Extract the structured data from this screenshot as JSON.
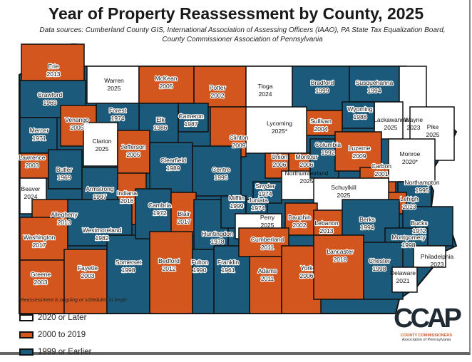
{
  "title": "Year of Property Reassessment by County, 2025",
  "sources": "Data sources: Cumberland County GIS, International Association of Assessing Officers (IAAO), PA State Tax Equalization Board, County Commissioner Association of Pennsylvania",
  "footnote": "*Reassessment is ongoing or scheduled to begin",
  "colors": {
    "white": "#ffffff",
    "orange": "#d2561e",
    "blue": "#1b5a7a",
    "border": "#111111"
  },
  "legend": [
    {
      "label": "2020 or Later",
      "category": "white"
    },
    {
      "label": "2000 to 2019",
      "category": "orange"
    },
    {
      "label": "1999 or Earlier",
      "category": "blue"
    }
  ],
  "logo": {
    "mark": "CCAP",
    "line1": "COUNTY COMMISSIONERS",
    "line2": "Association of Pennsylvania"
  },
  "counties": [
    {
      "name": "Erie",
      "year": "2013",
      "category": "orange"
    },
    {
      "name": "Warren",
      "year": "2025",
      "category": "white"
    },
    {
      "name": "McKean",
      "year": "2005",
      "category": "orange"
    },
    {
      "name": "Potter",
      "year": "2002",
      "category": "orange"
    },
    {
      "name": "Tioga",
      "year": "2024",
      "category": "white"
    },
    {
      "name": "Bradford",
      "year": "1999",
      "category": "blue"
    },
    {
      "name": "Susquehanna",
      "year": "1994",
      "category": "blue"
    },
    {
      "name": "Wayne",
      "year": "2023",
      "category": "white"
    },
    {
      "name": "Pike",
      "year": "2025",
      "category": "white"
    },
    {
      "name": "Lackawanna",
      "year": "2025",
      "category": "white"
    },
    {
      "name": "Wyoming",
      "year": "1988",
      "category": "blue"
    },
    {
      "name": "Sullivan",
      "year": "2004",
      "category": "orange"
    },
    {
      "name": "Lycoming",
      "year": "2025*",
      "category": "white"
    },
    {
      "name": "Clinton",
      "year": "2009",
      "category": "orange"
    },
    {
      "name": "Cameron",
      "year": "1987",
      "category": "blue"
    },
    {
      "name": "Elk",
      "year": "1986",
      "category": "blue"
    },
    {
      "name": "Forest",
      "year": "1974",
      "category": "blue"
    },
    {
      "name": "Crawford",
      "year": "1969",
      "category": "blue"
    },
    {
      "name": "Mercer",
      "year": "1971",
      "category": "blue"
    },
    {
      "name": "Venango",
      "year": "2005",
      "category": "orange"
    },
    {
      "name": "Clarion",
      "year": "2025",
      "category": "white"
    },
    {
      "name": "Jefferson",
      "year": "2005",
      "category": "orange"
    },
    {
      "name": "Clearfield",
      "year": "1989",
      "category": "blue"
    },
    {
      "name": "Centre",
      "year": "1995",
      "category": "blue"
    },
    {
      "name": "Lawrence",
      "year": "2003",
      "category": "orange"
    },
    {
      "name": "Butler",
      "year": "1969",
      "category": "blue"
    },
    {
      "name": "Armstrong",
      "year": "1997",
      "category": "blue"
    },
    {
      "name": "Indiana",
      "year": "2016",
      "category": "orange"
    },
    {
      "name": "Beaver",
      "year": "2024",
      "category": "white"
    },
    {
      "name": "Allegheny",
      "year": "2013",
      "category": "orange"
    },
    {
      "name": "Washington",
      "year": "2017",
      "category": "orange"
    },
    {
      "name": "Westmoreland",
      "year": "1982",
      "category": "blue"
    },
    {
      "name": "Greene",
      "year": "2003",
      "category": "orange"
    },
    {
      "name": "Fayette",
      "year": "2003",
      "category": "orange"
    },
    {
      "name": "Somerset",
      "year": "1998",
      "category": "blue"
    },
    {
      "name": "Cambria",
      "year": "1972",
      "category": "blue"
    },
    {
      "name": "Blair",
      "year": "2017",
      "category": "orange"
    },
    {
      "name": "Bedford",
      "year": "2012",
      "category": "orange"
    },
    {
      "name": "Huntingdon",
      "year": "1978",
      "category": "blue"
    },
    {
      "name": "Fulton",
      "year": "1990",
      "category": "blue"
    },
    {
      "name": "Franklin",
      "year": "1961",
      "category": "blue"
    },
    {
      "name": "Mifflin",
      "year": "1999",
      "category": "blue"
    },
    {
      "name": "Juniata",
      "year": "1974",
      "category": "blue"
    },
    {
      "name": "Perry",
      "year": "2025",
      "category": "white"
    },
    {
      "name": "Snyder",
      "year": "1974",
      "category": "blue"
    },
    {
      "name": "Union",
      "year": "2006",
      "category": "orange"
    },
    {
      "name": "Montour",
      "year": "2006",
      "category": "orange"
    },
    {
      "name": "Northumberland",
      "year": "2025",
      "category": "white"
    },
    {
      "name": "Columbia",
      "year": "1992",
      "category": "blue"
    },
    {
      "name": "Luzerne",
      "year": "2009",
      "category": "orange"
    },
    {
      "name": "Carbon",
      "year": "2001",
      "category": "orange"
    },
    {
      "name": "Monroe",
      "year": "2020*",
      "category": "white"
    },
    {
      "name": "Northampton",
      "year": "1995",
      "category": "blue"
    },
    {
      "name": "Lehigh",
      "year": "2013",
      "category": "orange"
    },
    {
      "name": "Schuylkill",
      "year": "2025",
      "category": "white"
    },
    {
      "name": "Dauphin",
      "year": "2002",
      "category": "orange"
    },
    {
      "name": "Lebanon",
      "year": "2013",
      "category": "orange"
    },
    {
      "name": "Berks",
      "year": "1994",
      "category": "blue"
    },
    {
      "name": "Bucks",
      "year": "1972",
      "category": "blue"
    },
    {
      "name": "Montgomery",
      "year": "1998",
      "category": "blue"
    },
    {
      "name": "Cumberland",
      "year": "2011",
      "category": "orange"
    },
    {
      "name": "Adams",
      "year": "2011",
      "category": "orange"
    },
    {
      "name": "York",
      "year": "2006",
      "category": "orange"
    },
    {
      "name": "Lancaster",
      "year": "2018",
      "category": "orange"
    },
    {
      "name": "Chester",
      "year": "1998",
      "category": "blue"
    },
    {
      "name": "Philadelphia",
      "year": "2023",
      "category": "white"
    },
    {
      "name": "Delaware",
      "year": "2021",
      "category": "white"
    }
  ]
}
